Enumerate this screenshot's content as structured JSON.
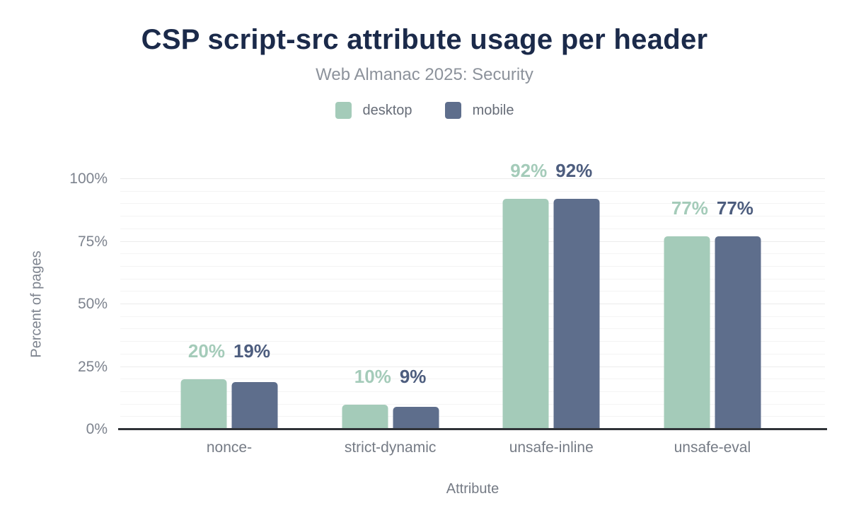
{
  "chart_data": {
    "type": "bar",
    "title": "CSP script-src attribute usage per header",
    "subtitle": "Web Almanac 2025: Security",
    "categories": [
      "nonce-",
      "strict-dynamic",
      "unsafe-inline",
      "unsafe-eval"
    ],
    "series": [
      {
        "name": "desktop",
        "color": "#a4cbb9",
        "label_color": "#a4cbb9",
        "values": [
          20,
          10,
          92,
          77
        ]
      },
      {
        "name": "mobile",
        "color": "#5e6e8c",
        "label_color": "#4d5d7e",
        "values": [
          19,
          9,
          92,
          77
        ]
      }
    ],
    "data_label_suffix": "%",
    "xlabel": "Attribute",
    "ylabel": "Percent of pages",
    "ylim": [
      0,
      100
    ],
    "yticks": [
      0,
      25,
      50,
      75,
      100
    ],
    "ytick_labels": [
      "0%",
      "25%",
      "50%",
      "75%",
      "100%"
    ],
    "grid": {
      "minor_step": 5,
      "major_step": 25,
      "minor_color": "#f4f4f4",
      "major_color": "#ececec"
    },
    "legend_position": "top",
    "colors": {
      "title": "#1b2a4a",
      "subtitle": "#8c929b",
      "axis_text": "#7d838e",
      "axis_line": "#303338",
      "background": "#ffffff"
    }
  }
}
